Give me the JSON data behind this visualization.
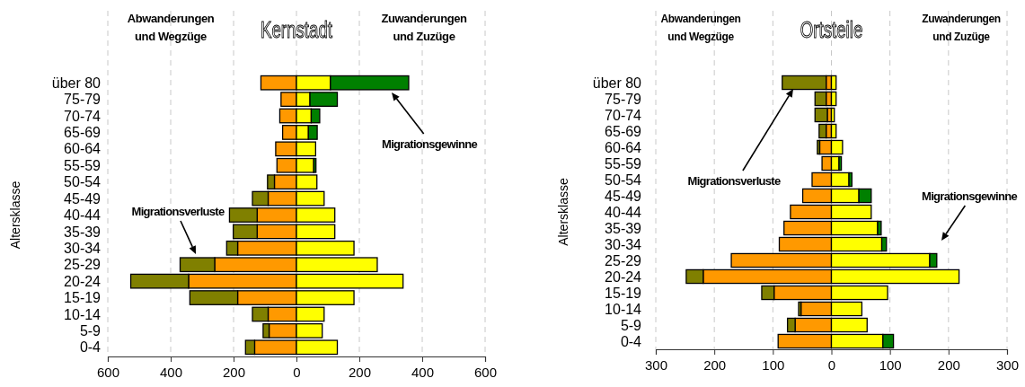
{
  "chart_data": [
    {
      "type": "bar",
      "title": "Kernstadt",
      "ylabel": "Altersklasse",
      "orientation": "horizontal",
      "stacked": true,
      "grid": "x",
      "categories": [
        "über 80",
        "75-79",
        "70-74",
        "65-69",
        "60-64",
        "55-59",
        "50-54",
        "45-49",
        "40-44",
        "35-39",
        "30-34",
        "25-29",
        "20-24",
        "15-19",
        "10-14",
        "5-9",
        "0-4"
      ],
      "series": [
        {
          "color": "#ff9900",
          "values": [
            -113,
            -49,
            -53,
            -44,
            -66,
            -62,
            -70,
            -90,
            -125,
            -125,
            -187,
            -260,
            -343,
            -187,
            -90,
            -87,
            -133
          ]
        },
        {
          "color": "#808000",
          "values": [
            null,
            null,
            null,
            null,
            null,
            null,
            -22,
            -50,
            -88,
            -76,
            -35,
            -110,
            -184,
            -152,
            -50,
            -19,
            -29
          ]
        },
        {
          "color": "#ffff00",
          "values": [
            108,
            43,
            47,
            38,
            61,
            55,
            65,
            88,
            122,
            122,
            183,
            257,
            339,
            183,
            88,
            82,
            130
          ]
        },
        {
          "color": "#008000",
          "values": [
            249,
            87,
            27,
            28,
            null,
            7,
            null,
            null,
            null,
            null,
            null,
            null,
            null,
            null,
            null,
            null,
            null
          ]
        }
      ],
      "xlim": [
        -600,
        600
      ],
      "xticks": [
        {
          "value": -600,
          "label": "600"
        },
        {
          "value": -400,
          "label": "400"
        },
        {
          "value": -200,
          "label": "200"
        },
        0,
        200,
        400,
        600
      ],
      "annotations": [
        "Abwanderungen und Wegzüge",
        "Zuwanderungen und Zuzüge",
        "Migrationsgewinne",
        "Migrationsverluste"
      ]
    },
    {
      "type": "bar",
      "title": "Ortsteile",
      "ylabel": "Altersklasse",
      "orientation": "horizontal",
      "stacked": true,
      "grid": "x",
      "categories": [
        "über 80",
        "75-79",
        "70-74",
        "65-69",
        "60-64",
        "55-59",
        "50-54",
        "45-49",
        "40-44",
        "35-39",
        "30-34",
        "25-29",
        "20-24",
        "15-19",
        "10-14",
        "5-9",
        "0-4"
      ],
      "series": [
        {
          "color": "#ff9900",
          "values": [
            -9,
            -9,
            -7,
            -9,
            -20,
            -16,
            -33,
            -49,
            -70,
            -81,
            -89,
            -171,
            -219,
            -98,
            -52,
            -62,
            -91
          ]
        },
        {
          "color": "#808000",
          "values": [
            -75,
            -19,
            -21,
            -12,
            -4,
            null,
            null,
            null,
            null,
            null,
            null,
            null,
            -29,
            -21,
            -4,
            -13,
            null
          ]
        },
        {
          "color": "#ffff00",
          "values": [
            8,
            8,
            5,
            8,
            19,
            13,
            30,
            47,
            68,
            79,
            86,
            168,
            218,
            96,
            52,
            61,
            88
          ]
        },
        {
          "color": "#008000",
          "values": [
            null,
            null,
            null,
            null,
            null,
            4,
            5,
            21,
            null,
            6,
            8,
            12,
            null,
            null,
            null,
            null,
            18
          ]
        }
      ],
      "xlim": [
        -300,
        300
      ],
      "xticks": [
        {
          "value": -300,
          "label": "300"
        },
        {
          "value": -200,
          "label": "200"
        },
        {
          "value": -100,
          "label": "100"
        },
        0,
        100,
        200,
        300
      ],
      "annotations": [
        "Abwanderungen und Wegzüge",
        "Zuwanderungen und Zuzüge",
        "Migrationsverluste",
        "Migrationsgewinne"
      ]
    }
  ]
}
